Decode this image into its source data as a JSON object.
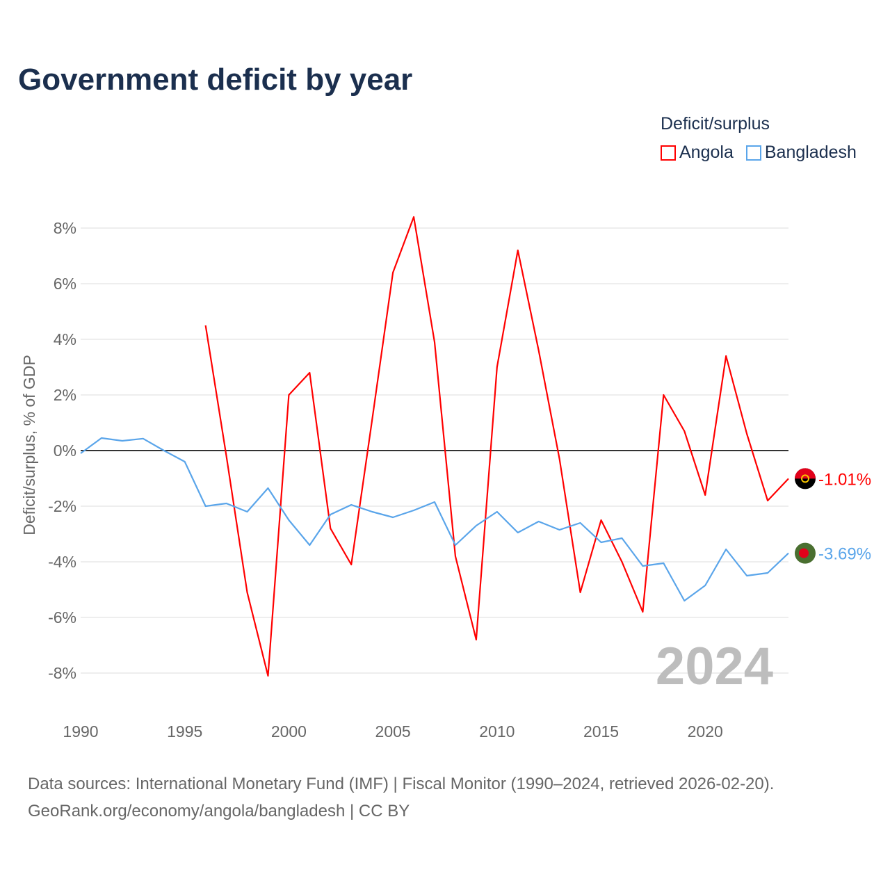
{
  "title": "Government deficit by year",
  "legend_title": "Deficit/surplus",
  "colors": {
    "Angola": "#ff0000",
    "Bangladesh": "#5aa5ea"
  },
  "source_line1": "Data sources: International Monetary Fund (IMF) | Fiscal Monitor (1990–2024, retrieved 2026-02-20).",
  "source_line2": "GeoRank.org/economy/angola/bangladesh | CC BY",
  "chart_data": {
    "type": "line",
    "title": "Government deficit by year",
    "xlabel": "",
    "ylabel": "Deficit/surplus, % of GDP",
    "xlim": [
      1990,
      2024
    ],
    "ylim": [
      -9,
      9
    ],
    "xticks": [
      1990,
      1995,
      2000,
      2005,
      2010,
      2015,
      2020
    ],
    "xtick_labels": [
      "1990",
      "1995",
      "2000",
      "2005",
      "2010",
      "2015",
      "2020"
    ],
    "yticks": [
      -8,
      -6,
      -4,
      -2,
      0,
      2,
      4,
      6,
      8
    ],
    "ytick_labels": [
      "-8%",
      "-6%",
      "-4%",
      "-2%",
      "0%",
      "2%",
      "4%",
      "6%",
      "8%"
    ],
    "grid": true,
    "legend_position": "top-right",
    "annotation": "2024",
    "series": [
      {
        "name": "Angola",
        "end_label": "-1.01%",
        "x": [
          1996,
          1997,
          1998,
          1999,
          2000,
          2001,
          2002,
          2003,
          2004,
          2005,
          2006,
          2007,
          2008,
          2009,
          2010,
          2011,
          2012,
          2013,
          2014,
          2015,
          2016,
          2017,
          2018,
          2019,
          2020,
          2021,
          2022,
          2023,
          2024
        ],
        "values": [
          4.5,
          -0.2,
          -5.1,
          -8.1,
          2.0,
          2.8,
          -2.8,
          -4.1,
          1.1,
          6.4,
          8.4,
          3.9,
          -3.8,
          -6.8,
          3.0,
          7.2,
          3.6,
          -0.3,
          -5.1,
          -2.5,
          -4.0,
          -5.8,
          2.0,
          0.7,
          -1.6,
          3.4,
          0.6,
          -1.8,
          -1.01
        ]
      },
      {
        "name": "Bangladesh",
        "end_label": "-3.69%",
        "x": [
          1990,
          1991,
          1992,
          1993,
          1994,
          1995,
          1996,
          1997,
          1998,
          1999,
          2000,
          2001,
          2002,
          2003,
          2004,
          2005,
          2006,
          2007,
          2008,
          2009,
          2010,
          2011,
          2012,
          2013,
          2014,
          2015,
          2016,
          2017,
          2018,
          2019,
          2020,
          2021,
          2022,
          2023,
          2024
        ],
        "values": [
          -0.1,
          0.45,
          0.35,
          0.43,
          0.0,
          -0.4,
          -2.0,
          -1.9,
          -2.2,
          -1.35,
          -2.5,
          -3.4,
          -2.3,
          -1.95,
          -2.2,
          -2.4,
          -2.15,
          -1.85,
          -3.4,
          -2.7,
          -2.2,
          -2.95,
          -2.55,
          -2.85,
          -2.6,
          -3.3,
          -3.15,
          -4.15,
          -4.05,
          -5.4,
          -4.85,
          -3.55,
          -4.5,
          -4.4,
          -3.69
        ]
      }
    ]
  }
}
